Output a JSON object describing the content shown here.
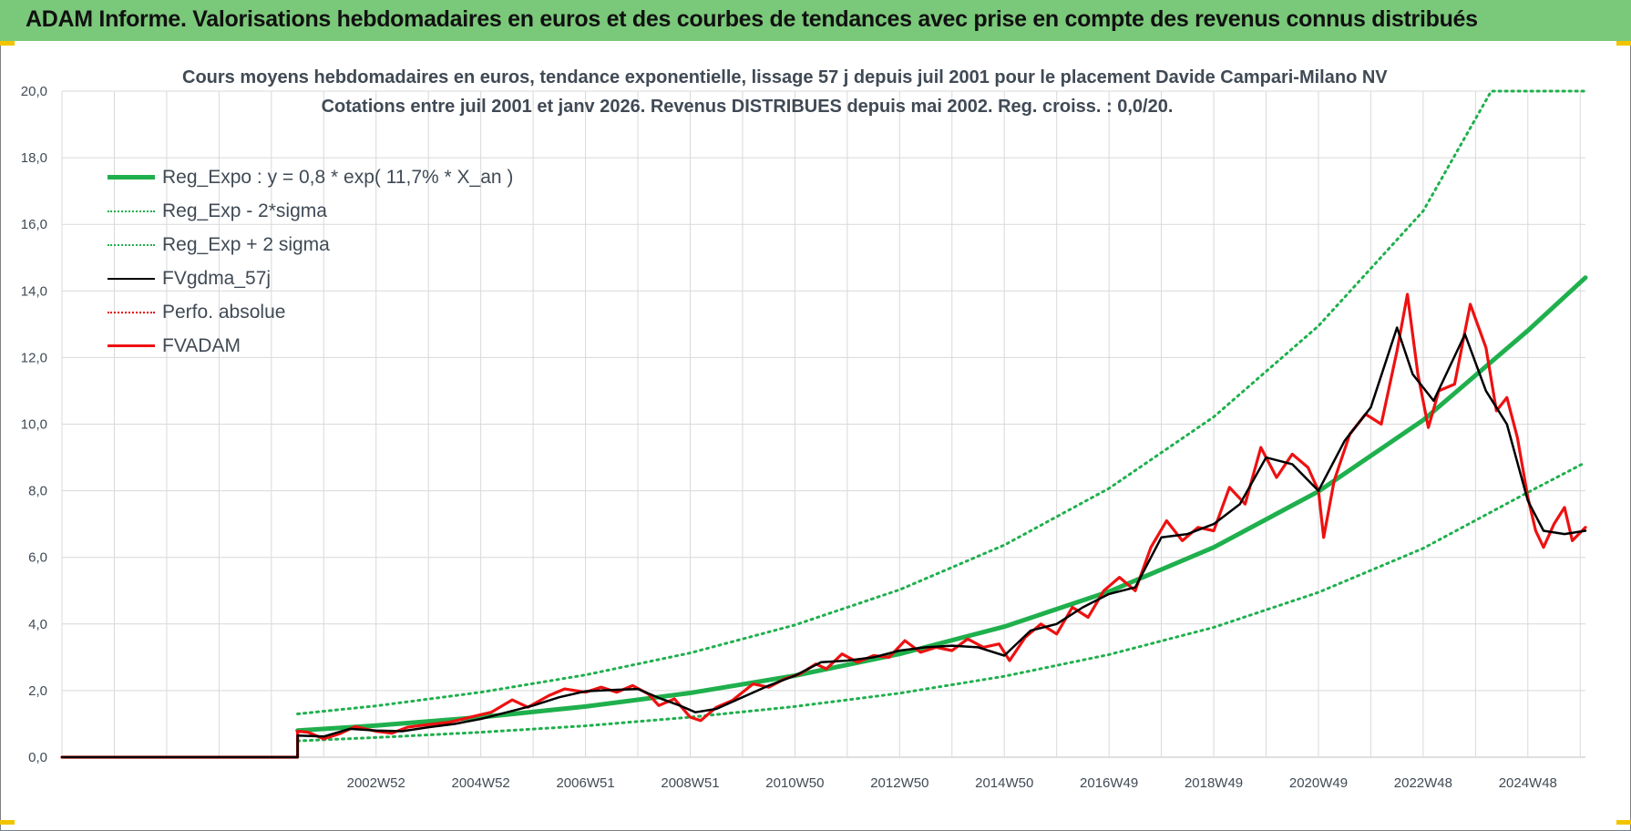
{
  "header": {
    "title": "ADAM Informe. Valorisations hebdomadaires en euros et des courbes de tendances avec prise en compte des revenus connus distribués"
  },
  "colors": {
    "banner": "#7ac87a",
    "reg": "#1fb04d",
    "dotted_green": "#1fb04d",
    "fvgdma": "#000000",
    "perfo": "#e00000",
    "fvadam": "#ee1111",
    "grid": "#d9d9d9"
  },
  "chart_data": {
    "type": "line",
    "title_line1": "Cours moyens hebdomadaires en euros, tendance exponentielle, lissage 57 j depuis juil 2001 pour le placement Davide Campari-Milano NV",
    "title_line2": "Cotations entre juil 2001 et janv 2026. Revenus DISTRIBUES depuis mai 2002. Reg. croiss. : 0,0/20.",
    "ylim": [
      0,
      20
    ],
    "y_ticks": [
      "0,0",
      "2,0",
      "4,0",
      "6,0",
      "8,0",
      "10,0",
      "12,0",
      "14,0",
      "16,0",
      "18,0",
      "20,0"
    ],
    "x_range": [
      1997.0,
      2026.1
    ],
    "x_ticks": [
      {
        "label": "2002W52",
        "x": 2003.0
      },
      {
        "label": "2004W52",
        "x": 2005.0
      },
      {
        "label": "2006W51",
        "x": 2007.0
      },
      {
        "label": "2008W51",
        "x": 2009.0
      },
      {
        "label": "2010W50",
        "x": 2011.0
      },
      {
        "label": "2012W50",
        "x": 2013.0
      },
      {
        "label": "2014W50",
        "x": 2015.0
      },
      {
        "label": "2016W49",
        "x": 2017.0
      },
      {
        "label": "2018W49",
        "x": 2019.0
      },
      {
        "label": "2020W49",
        "x": 2021.0
      },
      {
        "label": "2022W48",
        "x": 2023.0
      },
      {
        "label": "2024W48",
        "x": 2025.0
      }
    ],
    "series": [
      {
        "name": "Reg_Expo : y = 0,8 * exp( 11,7% *  X_an )",
        "style": "reg",
        "points": [
          [
            2001.5,
            0.8
          ],
          [
            2003,
            0.95
          ],
          [
            2005,
            1.2
          ],
          [
            2007,
            1.52
          ],
          [
            2009,
            1.93
          ],
          [
            2011,
            2.45
          ],
          [
            2013,
            3.1
          ],
          [
            2015,
            3.92
          ],
          [
            2017,
            4.97
          ],
          [
            2019,
            6.3
          ],
          [
            2021,
            7.98
          ],
          [
            2023,
            10.12
          ],
          [
            2025,
            12.81
          ],
          [
            2026.1,
            14.4
          ]
        ]
      },
      {
        "name": "Reg_Exp - 2*sigma",
        "style": "low",
        "points": [
          [
            2001.5,
            0.49
          ],
          [
            2003,
            0.59
          ],
          [
            2005,
            0.75
          ],
          [
            2007,
            0.94
          ],
          [
            2009,
            1.2
          ],
          [
            2011,
            1.52
          ],
          [
            2013,
            1.92
          ],
          [
            2015,
            2.43
          ],
          [
            2017,
            3.08
          ],
          [
            2019,
            3.9
          ],
          [
            2021,
            4.95
          ],
          [
            2023,
            6.27
          ],
          [
            2025,
            7.95
          ],
          [
            2026.1,
            8.85
          ]
        ]
      },
      {
        "name": "Reg_Exp + 2 sigma",
        "style": "high",
        "points": [
          [
            2001.5,
            1.3
          ],
          [
            2003,
            1.54
          ],
          [
            2005,
            1.95
          ],
          [
            2007,
            2.47
          ],
          [
            2009,
            3.13
          ],
          [
            2011,
            3.97
          ],
          [
            2013,
            5.03
          ],
          [
            2015,
            6.37
          ],
          [
            2017,
            8.07
          ],
          [
            2019,
            10.22
          ],
          [
            2021,
            12.95
          ],
          [
            2023,
            16.4
          ],
          [
            2024.3,
            20.0
          ],
          [
            2026.1,
            20.0
          ]
        ]
      },
      {
        "name": "FVgdma_57j",
        "style": "fvgdma",
        "points": [
          [
            1997,
            0
          ],
          [
            2001.5,
            0
          ],
          [
            2001.5,
            0.65
          ],
          [
            2002,
            0.62
          ],
          [
            2002.5,
            0.85
          ],
          [
            2003,
            0.8
          ],
          [
            2003.5,
            0.78
          ],
          [
            2004,
            0.9
          ],
          [
            2004.5,
            1.0
          ],
          [
            2005,
            1.15
          ],
          [
            2005.5,
            1.35
          ],
          [
            2006,
            1.55
          ],
          [
            2006.5,
            1.8
          ],
          [
            2007,
            1.98
          ],
          [
            2007.5,
            2.02
          ],
          [
            2008,
            2.05
          ],
          [
            2008.4,
            1.78
          ],
          [
            2008.8,
            1.55
          ],
          [
            2009.1,
            1.35
          ],
          [
            2009.5,
            1.45
          ],
          [
            2010,
            1.8
          ],
          [
            2010.5,
            2.15
          ],
          [
            2011,
            2.45
          ],
          [
            2011.5,
            2.85
          ],
          [
            2012,
            2.9
          ],
          [
            2012.5,
            3.0
          ],
          [
            2013,
            3.2
          ],
          [
            2013.5,
            3.3
          ],
          [
            2014,
            3.35
          ],
          [
            2014.5,
            3.3
          ],
          [
            2015,
            3.05
          ],
          [
            2015.5,
            3.8
          ],
          [
            2016,
            4.0
          ],
          [
            2016.5,
            4.5
          ],
          [
            2017,
            4.9
          ],
          [
            2017.5,
            5.1
          ],
          [
            2018,
            6.6
          ],
          [
            2018.5,
            6.7
          ],
          [
            2019,
            7.0
          ],
          [
            2019.5,
            7.6
          ],
          [
            2020,
            9.0
          ],
          [
            2020.5,
            8.8
          ],
          [
            2021,
            8.0
          ],
          [
            2021.5,
            9.5
          ],
          [
            2022,
            10.5
          ],
          [
            2022.5,
            12.9
          ],
          [
            2022.8,
            11.5
          ],
          [
            2023.2,
            10.7
          ],
          [
            2023.8,
            12.7
          ],
          [
            2024.2,
            11.0
          ],
          [
            2024.6,
            10.0
          ],
          [
            2025,
            7.7
          ],
          [
            2025.3,
            6.8
          ],
          [
            2025.7,
            6.7
          ],
          [
            2026.1,
            6.8
          ]
        ]
      },
      {
        "name": "Perfo. absolue",
        "style": "perfo",
        "points": []
      },
      {
        "name": "FVADAM",
        "style": "fvadam",
        "points": [
          [
            1997,
            0
          ],
          [
            2001.5,
            0
          ],
          [
            2001.5,
            0.78
          ],
          [
            2001.7,
            0.75
          ],
          [
            2002,
            0.55
          ],
          [
            2002.3,
            0.7
          ],
          [
            2002.6,
            0.92
          ],
          [
            2003,
            0.78
          ],
          [
            2003.3,
            0.72
          ],
          [
            2003.6,
            0.9
          ],
          [
            2004,
            0.98
          ],
          [
            2004.4,
            1.05
          ],
          [
            2004.8,
            1.2
          ],
          [
            2005.2,
            1.35
          ],
          [
            2005.6,
            1.72
          ],
          [
            2005.9,
            1.5
          ],
          [
            2006.3,
            1.85
          ],
          [
            2006.6,
            2.05
          ],
          [
            2007,
            1.95
          ],
          [
            2007.3,
            2.1
          ],
          [
            2007.6,
            1.95
          ],
          [
            2007.9,
            2.15
          ],
          [
            2008.2,
            1.9
          ],
          [
            2008.4,
            1.55
          ],
          [
            2008.7,
            1.75
          ],
          [
            2009,
            1.2
          ],
          [
            2009.2,
            1.1
          ],
          [
            2009.5,
            1.5
          ],
          [
            2009.8,
            1.7
          ],
          [
            2010.2,
            2.2
          ],
          [
            2010.5,
            2.1
          ],
          [
            2010.8,
            2.35
          ],
          [
            2011.1,
            2.5
          ],
          [
            2011.4,
            2.8
          ],
          [
            2011.6,
            2.65
          ],
          [
            2011.9,
            3.1
          ],
          [
            2012.2,
            2.85
          ],
          [
            2012.5,
            3.05
          ],
          [
            2012.8,
            3.0
          ],
          [
            2013.1,
            3.5
          ],
          [
            2013.4,
            3.15
          ],
          [
            2013.7,
            3.3
          ],
          [
            2014,
            3.2
          ],
          [
            2014.3,
            3.55
          ],
          [
            2014.6,
            3.3
          ],
          [
            2014.9,
            3.4
          ],
          [
            2015.1,
            2.9
          ],
          [
            2015.4,
            3.6
          ],
          [
            2015.7,
            4.0
          ],
          [
            2016,
            3.7
          ],
          [
            2016.3,
            4.5
          ],
          [
            2016.6,
            4.2
          ],
          [
            2016.9,
            5.0
          ],
          [
            2017.2,
            5.4
          ],
          [
            2017.5,
            5.0
          ],
          [
            2017.8,
            6.3
          ],
          [
            2018.1,
            7.1
          ],
          [
            2018.4,
            6.5
          ],
          [
            2018.7,
            6.9
          ],
          [
            2019,
            6.8
          ],
          [
            2019.3,
            8.1
          ],
          [
            2019.6,
            7.6
          ],
          [
            2019.9,
            9.3
          ],
          [
            2020.2,
            8.4
          ],
          [
            2020.5,
            9.1
          ],
          [
            2020.8,
            8.7
          ],
          [
            2021,
            8.0
          ],
          [
            2021.1,
            6.6
          ],
          [
            2021.3,
            8.3
          ],
          [
            2021.6,
            9.7
          ],
          [
            2021.9,
            10.3
          ],
          [
            2022.2,
            10.0
          ],
          [
            2022.5,
            12.2
          ],
          [
            2022.7,
            13.9
          ],
          [
            2022.9,
            11.5
          ],
          [
            2023.1,
            9.9
          ],
          [
            2023.3,
            11.0
          ],
          [
            2023.6,
            11.2
          ],
          [
            2023.9,
            13.6
          ],
          [
            2024.2,
            12.3
          ],
          [
            2024.4,
            10.4
          ],
          [
            2024.6,
            10.8
          ],
          [
            2024.8,
            9.6
          ],
          [
            2025,
            7.8
          ],
          [
            2025.15,
            6.8
          ],
          [
            2025.3,
            6.3
          ],
          [
            2025.5,
            7.0
          ],
          [
            2025.7,
            7.5
          ],
          [
            2025.85,
            6.5
          ],
          [
            2026.1,
            6.9
          ]
        ]
      }
    ]
  }
}
